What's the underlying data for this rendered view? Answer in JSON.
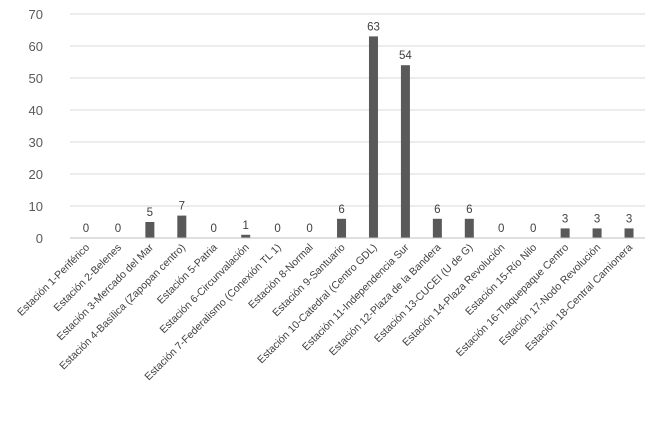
{
  "chart_data": {
    "type": "bar",
    "title": "",
    "xlabel": "",
    "ylabel": "",
    "ylim": [
      0,
      70
    ],
    "yticks": [
      0,
      10,
      20,
      30,
      40,
      50,
      60,
      70
    ],
    "grid": true,
    "legend": "none",
    "bar_color": "#595959",
    "categories": [
      "Estación 1-Periférico",
      "Estación 2-Belenes",
      "Estación 3-Mercado del Mar",
      "Estación 4-Basílica (Zapopan centro)",
      "Estación 5-Patria",
      "Estación 6-Circunvalación",
      "Estación 7-Federalismo (Conexión TL 1)",
      "Estación 8-Normal",
      "Estación 9-Santuario",
      "Estación 10-Catedral (Centro GDL)",
      "Estación 11-Independencia Sur",
      "Estación 12-Plaza de la Bandera",
      "Estación 13-CUCEI (U de G)",
      "Estación 14-Plaza Revolución",
      "Estación 15-Río Nilo",
      "Estación 16-Tlaquepaque Centro",
      "Estación 17-Nodo Revolución",
      "Estación 18-Central Camionera"
    ],
    "values": [
      0,
      0,
      5,
      7,
      0,
      1,
      0,
      0,
      6,
      63,
      54,
      6,
      6,
      0,
      0,
      3,
      3,
      3
    ]
  }
}
